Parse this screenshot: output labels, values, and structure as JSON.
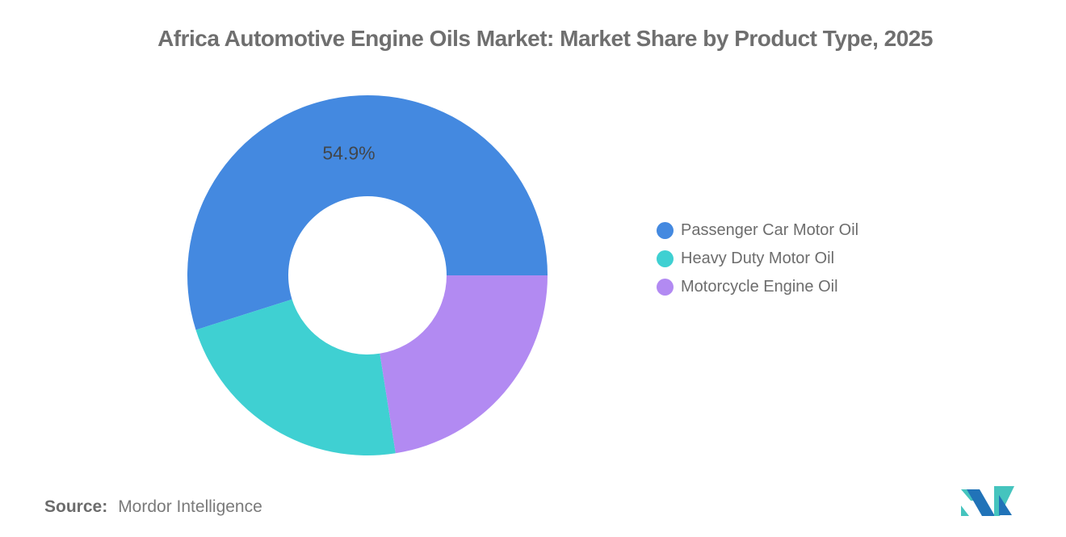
{
  "title": "Africa Automotive Engine Oils Market: Market Share by Product Type, 2025",
  "source": {
    "label": "Source:",
    "value": "Mordor Intelligence"
  },
  "logo": {
    "name": "mordor-intelligence-logo",
    "teal_color": "#45C4BE",
    "blue_color": "#2173B8"
  },
  "chart_data": {
    "type": "pie",
    "subtype": "donut",
    "title": "Africa Automotive Engine Oils Market: Market Share by Product Type, 2025",
    "unit": "%",
    "start_angle": 90,
    "direction": "counterclockwise",
    "inner_radius_ratio": 0.44,
    "legend_position": "right",
    "slices": [
      {
        "name": "Passenger Car Motor Oil",
        "value": 54.9,
        "color": "#4489E0",
        "label": "54.9%"
      },
      {
        "name": "Heavy Duty Motor Oil",
        "value": 22.6,
        "color": "#3FD0D2",
        "label": ""
      },
      {
        "name": "Motorcycle Engine Oil",
        "value": 22.5,
        "color": "#B28AF2",
        "label": ""
      }
    ]
  }
}
